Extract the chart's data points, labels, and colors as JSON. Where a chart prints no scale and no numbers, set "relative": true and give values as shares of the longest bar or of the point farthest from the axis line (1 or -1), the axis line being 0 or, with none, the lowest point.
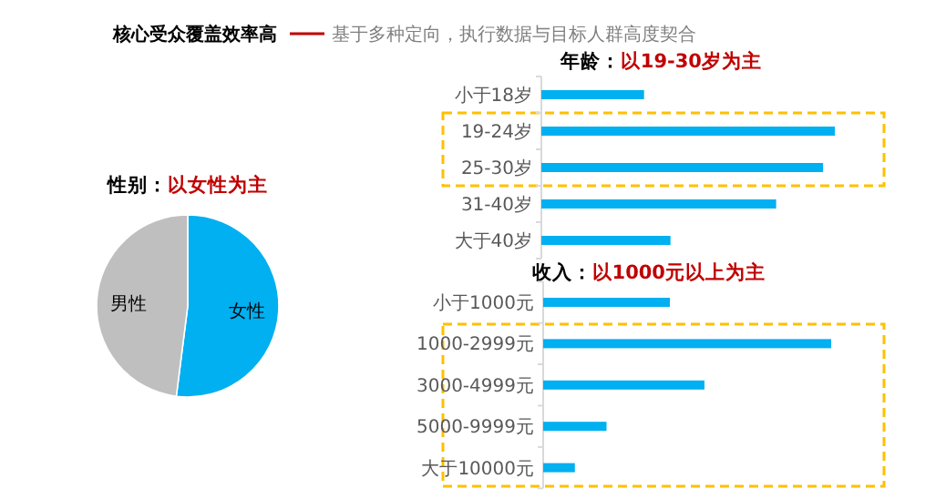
{
  "chart_data": [
    {
      "type": "other",
      "title": "核心受众覆盖效率高",
      "subtitle": "基于多种定向，执行数据与目标人群高度契合"
    },
    {
      "type": "pie",
      "title": "性别：以女性为主",
      "categories": [
        "女性",
        "男性"
      ],
      "values": [
        52,
        48
      ],
      "colors": [
        "#00b0f0",
        "#bfbfbf"
      ]
    },
    {
      "type": "bar",
      "orientation": "horizontal",
      "relative": true,
      "title": "年龄：以19-30岁为主",
      "categories": [
        "小于18岁",
        "19-24岁",
        "25-30岁",
        "31-40岁",
        "大于40岁"
      ],
      "values": [
        0.35,
        1,
        0.96,
        0.8,
        0.44
      ],
      "color": "#00b0f0"
    },
    {
      "type": "bar",
      "orientation": "horizontal",
      "relative": true,
      "title": "收入：以1000元以上为主",
      "categories": [
        "小于1000元",
        "1000-2999元",
        "3000-4999元",
        "5000-9999元",
        "大于10000元"
      ],
      "values": [
        0.44,
        1,
        0.56,
        0.22,
        0.11
      ],
      "color": "#00b0f0"
    }
  ]
}
